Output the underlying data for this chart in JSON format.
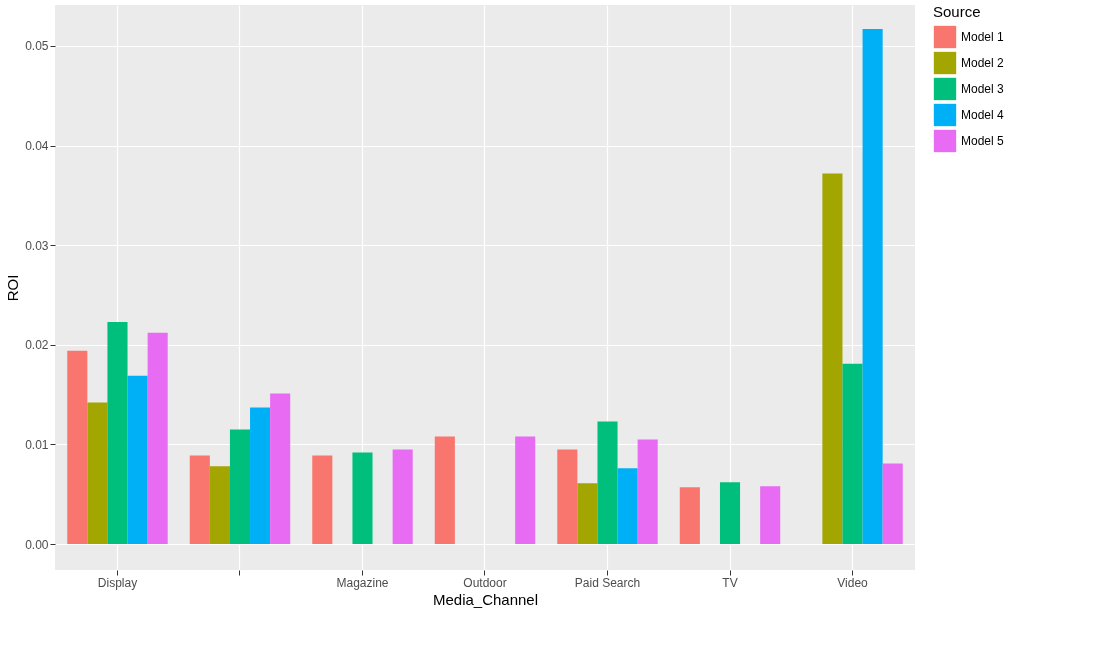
{
  "chart_data": {
    "type": "bar",
    "xlabel": "Media_Channel",
    "ylabel": "ROI",
    "legend_title": "Source",
    "legend": "right",
    "grid": true,
    "categories": [
      "Display",
      null,
      "Magazine",
      "Outdoor",
      "Paid Search",
      "TV",
      "Video"
    ],
    "ylim": [
      -0.0026,
      0.0541
    ],
    "yticks": [
      {
        "value": 0,
        "label": "0.00"
      },
      {
        "value": 0.01,
        "label": "0.01"
      },
      {
        "value": 0.02,
        "label": "0.02"
      },
      {
        "value": 0.03,
        "label": "0.03"
      },
      {
        "value": 0.04,
        "label": "0.04"
      },
      {
        "value": 0.05,
        "label": "0.05"
      }
    ],
    "series": [
      {
        "name": "Model 1",
        "color": "#f8766d",
        "values": [
          0.0194,
          0.0089,
          0.0089,
          0.0108,
          0.0095,
          0.0057,
          null
        ]
      },
      {
        "name": "Model 2",
        "color": "#a3a500",
        "values": [
          0.0142,
          0.0078,
          null,
          null,
          0.0061,
          null,
          0.0372
        ]
      },
      {
        "name": "Model 3",
        "color": "#00bf7d",
        "values": [
          0.0223,
          0.0115,
          0.0092,
          null,
          0.0123,
          0.0062,
          0.0181
        ]
      },
      {
        "name": "Model 4",
        "color": "#00b0f6",
        "values": [
          0.0169,
          0.0137,
          null,
          null,
          0.0076,
          null,
          0.0517
        ]
      },
      {
        "name": "Model 5",
        "color": "#e76bf3",
        "values": [
          0.0212,
          0.0151,
          0.0095,
          0.0108,
          0.0105,
          0.0058,
          0.0081
        ]
      }
    ]
  }
}
